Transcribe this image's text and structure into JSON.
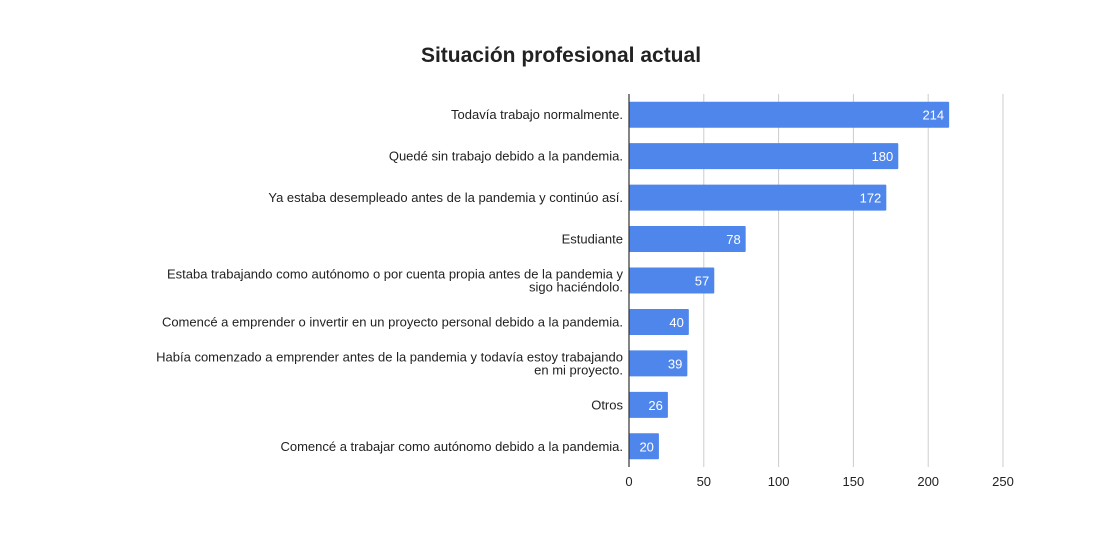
{
  "chart_data": {
    "type": "bar",
    "orientation": "horizontal",
    "title": "Situación profesional actual",
    "xlabel": "",
    "ylabel": "",
    "categories": [
      [
        "Todavía trabajo normalmente."
      ],
      [
        "Quedé sin trabajo debido a la pandemia."
      ],
      [
        "Ya estaba desempleado antes de la pandemia y continúo así."
      ],
      [
        "Estudiante"
      ],
      [
        "Estaba trabajando como autónomo o por cuenta propia antes de la pandemia y",
        "sigo haciéndolo."
      ],
      [
        "Comencé a emprender o invertir en un proyecto personal debido a la pandemia."
      ],
      [
        "Había comenzado a emprender antes de la pandemia y todavía estoy trabajando",
        "en mi proyecto."
      ],
      [
        "Otros"
      ],
      [
        "Comencé a trabajar como autónomo debido a la pandemia."
      ]
    ],
    "values": [
      214,
      180,
      172,
      78,
      57,
      40,
      39,
      26,
      20
    ],
    "data_labels": [
      "214",
      "180",
      "172",
      "78",
      "57",
      "40",
      "39",
      "26",
      "20"
    ],
    "xlim": [
      0,
      250
    ],
    "xticks": [
      "0",
      "50",
      "100",
      "150",
      "200",
      "250"
    ],
    "grid": "vertical",
    "legend": "none",
    "bar_color": "#4f86ec",
    "grid_color": "#cccccc",
    "axis_color": "#333333"
  }
}
